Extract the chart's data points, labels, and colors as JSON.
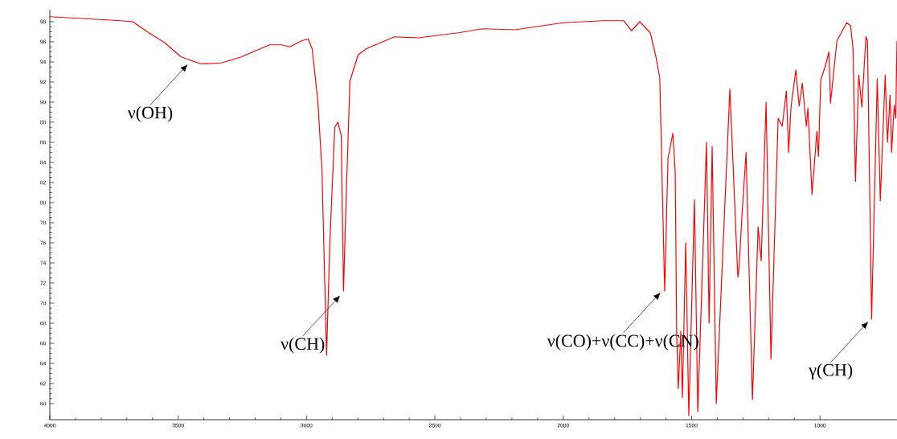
{
  "chart_data": {
    "type": "line",
    "xlim": [
      4000,
      700
    ],
    "ylim": [
      58.4,
      99.2
    ],
    "xticks": [
      4000,
      3500,
      3000,
      2500,
      2000,
      1500,
      1000
    ],
    "yticks": [
      60,
      62,
      64,
      66,
      68,
      70,
      72,
      74,
      76,
      78,
      80,
      82,
      84,
      86,
      88,
      90,
      92,
      94,
      96,
      98
    ],
    "series": [
      {
        "color": "#ff0000",
        "x": [
          4000,
          3724,
          3677,
          3614,
          3552,
          3489,
          3411,
          3332,
          3254,
          3144,
          3097,
          3066,
          3019,
          2994,
          2978,
          2956,
          2940,
          2922,
          2909,
          2890,
          2878,
          2865,
          2856,
          2846,
          2831,
          2799,
          2768,
          2658,
          2564,
          2408,
          2313,
          2188,
          2000,
          1843,
          1765,
          1734,
          1702,
          1661,
          1639,
          1624,
          1618,
          1605,
          1592,
          1573,
          1564,
          1558,
          1552,
          1542,
          1536,
          1523,
          1511,
          1489,
          1476,
          1442,
          1432,
          1420,
          1404,
          1351,
          1320,
          1316,
          1304,
          1288,
          1263,
          1241,
          1229,
          1210,
          1191,
          1163,
          1147,
          1131,
          1122,
          1113,
          1094,
          1081,
          1069,
          1053,
          1047,
          1031,
          1012,
          1006,
          997,
          978,
          965,
          959,
          934,
          896,
          881,
          871,
          862,
          849,
          837,
          821,
          815,
          799,
          777,
          765,
          746,
          737,
          727,
          721,
          711,
          705,
          700
        ],
        "values": [
          98.5,
          98.1,
          98.0,
          96.9,
          95.9,
          94.5,
          93.8,
          93.9,
          94.5,
          95.7,
          95.7,
          95.5,
          96.1,
          96.3,
          95.3,
          90.1,
          83.3,
          64.8,
          76.2,
          87.5,
          88.0,
          86.7,
          71.2,
          80.2,
          92.1,
          94.7,
          95.3,
          96.5,
          96.4,
          96.9,
          97.3,
          97.2,
          97.9,
          98.1,
          98.1,
          97.1,
          98.0,
          96.9,
          94.5,
          92.4,
          85.8,
          71.2,
          84.4,
          86.9,
          83.1,
          66.6,
          61.5,
          67.2,
          60.6,
          76.0,
          58.8,
          80.3,
          59.2,
          86.0,
          68.0,
          85.6,
          60.0,
          91.3,
          72.6,
          73.2,
          78.7,
          85.0,
          60.4,
          77.6,
          74.2,
          90.0,
          64.4,
          88.4,
          87.6,
          91.1,
          85.0,
          89.5,
          93.2,
          89.6,
          91.9,
          87.6,
          89.4,
          80.8,
          87.1,
          84.6,
          92.2,
          93.7,
          95.0,
          89.9,
          96.1,
          97.9,
          97.6,
          95.3,
          82.1,
          92.7,
          89.5,
          96.5,
          96.1,
          68.4,
          92.3,
          80.2,
          92.7,
          86.0,
          90.7,
          85.0,
          89.7,
          88.4,
          96.1
        ]
      }
    ],
    "annotations": [
      {
        "text": "ν(OH)",
        "x": 3450,
        "y": 94.2
      },
      {
        "text": "ν(CH)",
        "x": 2856,
        "y": 71.2
      },
      {
        "text": "ν(CO)+ν(CC)+ν(CN)",
        "x": 1608,
        "y": 71.5
      },
      {
        "text": "γ(CH)",
        "x": 799,
        "y": 68.6
      }
    ]
  }
}
